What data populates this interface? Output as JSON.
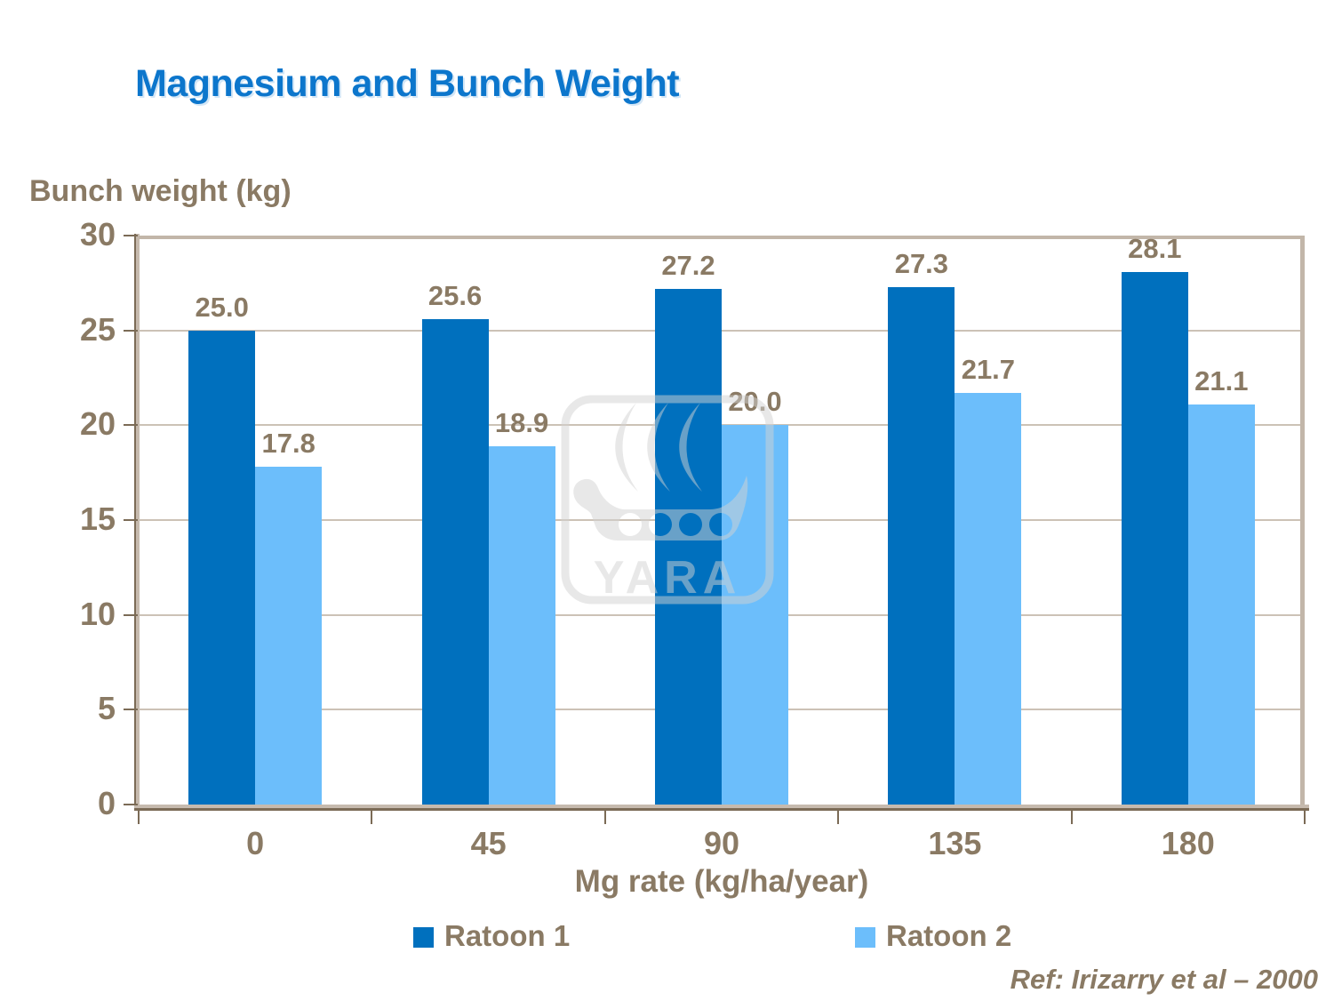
{
  "title": "Magnesium and Bunch Weight",
  "chart_data": {
    "type": "bar",
    "title": "Magnesium and Bunch Weight",
    "categories": [
      "0",
      "45",
      "90",
      "135",
      "180"
    ],
    "series": [
      {
        "name": "Ratoon 1",
        "color": "#0070BE",
        "values": [
          25.0,
          25.6,
          27.2,
          27.3,
          28.1
        ]
      },
      {
        "name": "Ratoon 2",
        "color": "#6CBEFB",
        "values": [
          17.8,
          18.9,
          20.0,
          21.7,
          21.1
        ]
      }
    ],
    "xlabel": "Mg rate (kg/ha/year)",
    "ylabel": "Bunch weight (kg)",
    "ylim": [
      0,
      30
    ],
    "yticks": [
      0,
      5,
      10,
      15,
      20,
      25,
      30
    ],
    "grid": true,
    "legend_position": "bottom",
    "value_label_decimals": 1
  },
  "reference": "Ref: Irizarry et al – 2000",
  "watermark": {
    "wordmark": "YARA"
  },
  "colors": {
    "title_blue": "#0C76CC",
    "ratoon1_blue": "#0070BE",
    "ratoon2_blue": "#6CBEFB",
    "text_brown": "#8A7A64",
    "axis_dark_brown": "#7B6B56",
    "axis_tan": "#C2B6A9",
    "gridline_tan": "#CCC2B6",
    "watermark_gray": "#D2D2D2"
  }
}
